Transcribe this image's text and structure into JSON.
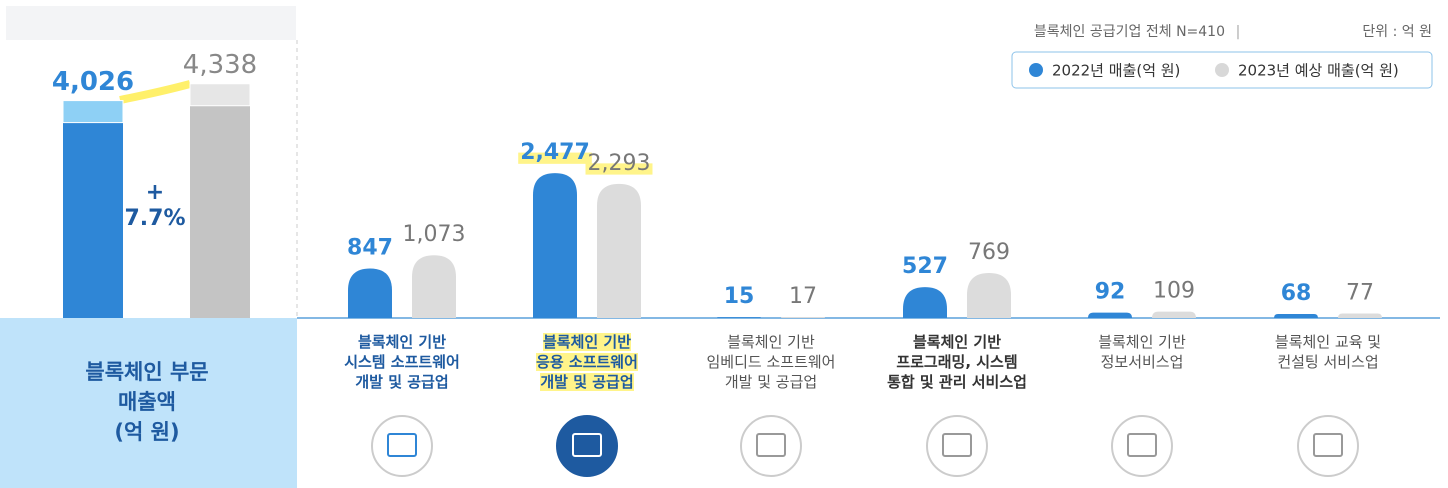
{
  "chart_data": {
    "type": "bar",
    "note": "블록체인 공급기업 전체 N=410",
    "unit": "단위 : 억 원",
    "categories": [
      "블록체인 기반\n시스템 소프트웨어\n개발 및 공급업",
      "블록체인 기반\n응용 소프트웨어\n개발 및 공급업",
      "블록체인 기반\n임베디드 소프트웨어\n개발 및 공급업",
      "블록체인 기반\n프로그래밍, 시스템\n통합 및 관리 서비스업",
      "블록체인 기반\n정보서비스업",
      "블록체인 교육 및\n컨설팅 서비스업"
    ],
    "series": [
      {
        "name": "2022년 매출(억 원)",
        "color": "#2f86d6",
        "values": [
          847,
          2477,
          15,
          527,
          92,
          68
        ],
        "value_labels": [
          "847",
          "2,477",
          "15",
          "527",
          "92",
          "68"
        ]
      },
      {
        "name": "2023년 예상 매출(억 원)",
        "color": "#dcdcdc",
        "values": [
          1073,
          2293,
          17,
          769,
          109,
          77
        ],
        "value_labels": [
          "1,073",
          "2,293",
          "17",
          "769",
          "109",
          "77"
        ]
      }
    ],
    "total": {
      "label": "블록체인 부문\n매출액\n(억 원)",
      "values": [
        4026,
        4338
      ],
      "value_labels": [
        "4,026",
        "4,338"
      ],
      "growth": "+\n7.7%"
    }
  }
}
